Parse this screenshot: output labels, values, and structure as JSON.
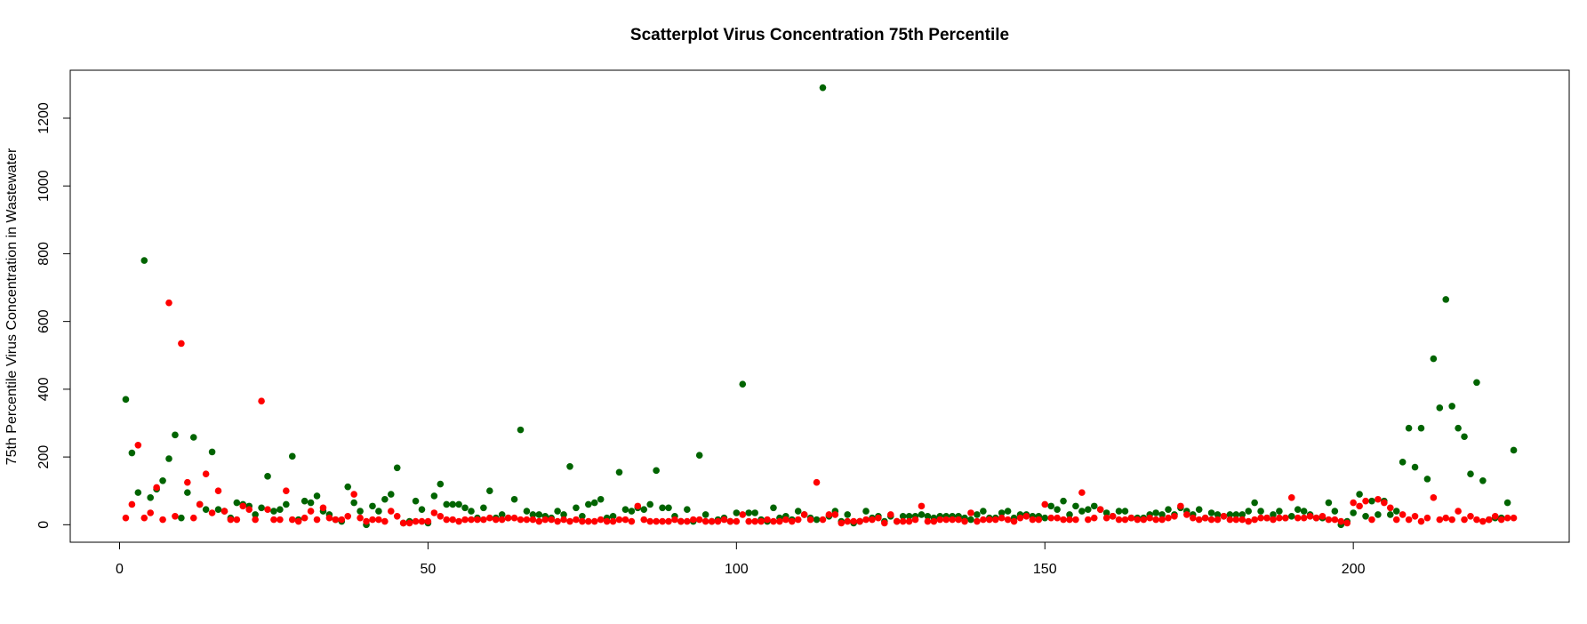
{
  "chart_data": {
    "type": "scatter",
    "title": "Scatterplot Virus Concentration 75th Percentile",
    "y_label": "75th Percentile Virus Concentration in Wastewater",
    "xlim": [
      -8,
      235
    ],
    "ylim": [
      -51.6,
      1341.6
    ],
    "xticks": [
      0,
      50,
      100,
      150,
      200
    ],
    "yticks": [
      0,
      200,
      400,
      600,
      800,
      1000,
      1200
    ],
    "x": [
      1,
      2,
      3,
      4,
      5,
      6,
      7,
      8,
      9,
      10,
      11,
      12,
      13,
      14,
      15,
      16,
      17,
      18,
      19,
      20,
      21,
      22,
      23,
      24,
      25,
      26,
      27,
      28,
      29,
      30,
      31,
      32,
      33,
      34,
      35,
      36,
      37,
      38,
      39,
      40,
      41,
      42,
      43,
      44,
      45,
      46,
      47,
      48,
      49,
      50,
      51,
      52,
      53,
      54,
      55,
      56,
      57,
      58,
      59,
      60,
      61,
      62,
      63,
      64,
      65,
      66,
      67,
      68,
      69,
      70,
      71,
      72,
      73,
      74,
      75,
      76,
      77,
      78,
      79,
      80,
      81,
      82,
      83,
      84,
      85,
      86,
      87,
      88,
      89,
      90,
      91,
      92,
      93,
      94,
      95,
      96,
      97,
      98,
      99,
      100,
      101,
      102,
      103,
      104,
      105,
      106,
      107,
      108,
      109,
      110,
      111,
      112,
      113,
      114,
      115,
      116,
      117,
      118,
      119,
      120,
      121,
      122,
      123,
      124,
      125,
      126,
      127,
      128,
      129,
      130,
      131,
      132,
      133,
      134,
      135,
      136,
      137,
      138,
      139,
      140,
      141,
      142,
      143,
      144,
      145,
      146,
      147,
      148,
      149,
      150,
      151,
      152,
      153,
      154,
      155,
      156,
      157,
      158,
      159,
      160,
      161,
      162,
      163,
      164,
      165,
      166,
      167,
      168,
      169,
      170,
      171,
      172,
      173,
      174,
      175,
      176,
      177,
      178,
      179,
      180,
      181,
      182,
      183,
      184,
      185,
      186,
      187,
      188,
      189,
      190,
      191,
      192,
      193,
      194,
      195,
      196,
      197,
      198,
      199,
      200,
      201,
      202,
      203,
      204,
      205,
      206,
      207,
      208,
      209,
      210,
      211,
      212,
      213,
      214,
      215,
      216,
      217,
      218,
      219,
      220,
      221,
      222,
      223,
      224,
      225,
      226
    ],
    "series": [
      {
        "color": "#006400",
        "values": [
          370,
          212,
          95,
          780,
          80,
          105,
          130,
          195,
          265,
          20,
          95,
          258,
          60,
          45,
          215,
          45,
          40,
          20,
          65,
          60,
          55,
          30,
          50,
          143,
          40,
          45,
          60,
          202,
          15,
          70,
          65,
          85,
          40,
          30,
          15,
          10,
          112,
          65,
          40,
          0,
          55,
          40,
          75,
          90,
          168,
          5,
          10,
          70,
          45,
          5,
          85,
          120,
          60,
          60,
          60,
          50,
          40,
          20,
          50,
          100,
          20,
          30,
          20,
          75,
          280,
          40,
          30,
          30,
          25,
          20,
          40,
          30,
          172,
          50,
          25,
          60,
          65,
          75,
          20,
          25,
          155,
          45,
          40,
          50,
          45,
          60,
          160,
          50,
          50,
          25,
          10,
          45,
          10,
          205,
          30,
          10,
          15,
          20,
          10,
          35,
          415,
          35,
          35,
          15,
          10,
          50,
          20,
          25,
          15,
          40,
          30,
          20,
          15,
          1290,
          25,
          40,
          10,
          30,
          5,
          10,
          40,
          20,
          25,
          10,
          25,
          10,
          25,
          25,
          25,
          30,
          25,
          20,
          25,
          25,
          25,
          25,
          20,
          15,
          30,
          40,
          20,
          20,
          35,
          40,
          20,
          30,
          30,
          25,
          25,
          20,
          55,
          45,
          70,
          30,
          55,
          40,
          45,
          55,
          45,
          35,
          25,
          40,
          40,
          20,
          20,
          20,
          30,
          35,
          30,
          45,
          30,
          50,
          40,
          30,
          45,
          20,
          35,
          30,
          25,
          30,
          30,
          30,
          40,
          65,
          40,
          20,
          30,
          40,
          20,
          25,
          45,
          40,
          30,
          20,
          20,
          65,
          40,
          0,
          10,
          35,
          90,
          25,
          70,
          30,
          70,
          30,
          40,
          185,
          285,
          170,
          285,
          135,
          490,
          345,
          665,
          350,
          285,
          260,
          150,
          420,
          130,
          15,
          20,
          20,
          65,
          220
        ]
      },
      {
        "color": "#ff0000",
        "values": [
          20,
          60,
          235,
          20,
          35,
          110,
          15,
          655,
          25,
          535,
          125,
          20,
          60,
          150,
          35,
          100,
          40,
          15,
          15,
          55,
          45,
          15,
          365,
          45,
          15,
          15,
          100,
          15,
          10,
          20,
          40,
          15,
          50,
          20,
          15,
          15,
          25,
          90,
          20,
          10,
          15,
          15,
          10,
          40,
          25,
          5,
          5,
          10,
          10,
          10,
          35,
          25,
          15,
          15,
          10,
          15,
          15,
          15,
          15,
          20,
          15,
          15,
          20,
          20,
          15,
          15,
          15,
          10,
          15,
          15,
          10,
          15,
          10,
          15,
          10,
          10,
          10,
          15,
          10,
          10,
          15,
          15,
          10,
          55,
          15,
          10,
          10,
          10,
          10,
          15,
          10,
          10,
          15,
          15,
          10,
          10,
          10,
          15,
          10,
          10,
          30,
          10,
          10,
          10,
          15,
          10,
          10,
          15,
          10,
          15,
          30,
          15,
          125,
          15,
          30,
          30,
          5,
          10,
          10,
          10,
          15,
          15,
          20,
          5,
          30,
          10,
          10,
          10,
          15,
          55,
          10,
          10,
          15,
          15,
          15,
          15,
          10,
          35,
          10,
          15,
          15,
          15,
          20,
          15,
          10,
          20,
          25,
          15,
          15,
          60,
          20,
          20,
          15,
          15,
          15,
          95,
          15,
          20,
          45,
          20,
          25,
          15,
          15,
          20,
          15,
          15,
          20,
          15,
          15,
          20,
          25,
          55,
          30,
          20,
          15,
          20,
          15,
          15,
          25,
          15,
          15,
          15,
          10,
          15,
          20,
          20,
          15,
          20,
          20,
          80,
          20,
          20,
          25,
          20,
          25,
          15,
          15,
          10,
          5,
          65,
          55,
          70,
          15,
          75,
          65,
          50,
          15,
          30,
          15,
          25,
          10,
          20,
          80,
          15,
          20,
          15,
          40,
          15,
          25,
          15,
          10,
          15,
          25,
          15,
          20,
          20
        ]
      }
    ]
  }
}
